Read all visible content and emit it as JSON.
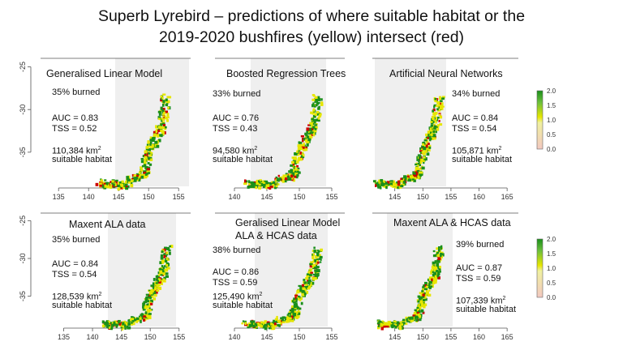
{
  "title": {
    "line1": "Superb Lyrebird – predictions of where suitable habitat or the",
    "line2": "2019-2020 bushfires (yellow) intersect (red)"
  },
  "colors": {
    "bg_panel": "#efefef",
    "burn": "#e6e600",
    "habitat": "#1a8f1a",
    "intersect": "#cc0000"
  },
  "legend": {
    "ticks": [
      "2.0",
      "1.5",
      "1.0",
      "0.5",
      "0.0"
    ]
  },
  "panels": [
    {
      "name": "Generalised Linear Model",
      "name2": "",
      "burned": "35% burned",
      "auc": "AUC = 0.83",
      "tss": "TSS = 0.52",
      "area": "110,384",
      "area_unit": "km",
      "sup": "2",
      "habitat": "suitable habitat",
      "xticks": [
        "135",
        "140",
        "145",
        "150",
        "155"
      ],
      "yticks": [
        "-25",
        "-30",
        "-35"
      ]
    },
    {
      "name": "Boosted Regression Trees",
      "name2": "",
      "burned": "33% burned",
      "auc": "AUC = 0.76",
      "tss": "TSS = 0.43",
      "area": "94,580",
      "area_unit": "km",
      "sup": "2",
      "habitat": "suitable habitat",
      "xticks": [
        "140",
        "145",
        "150",
        "155"
      ],
      "yticks": []
    },
    {
      "name": "Artificial Neural Networks",
      "name2": "",
      "burned": "34% burned",
      "auc": "AUC = 0.84",
      "tss": "TSS = 0.54",
      "area": "105,871",
      "area_unit": "km",
      "sup": "2",
      "habitat": "suitable habitat",
      "xticks": [
        "145",
        "150",
        "155",
        "160",
        "165"
      ],
      "yticks": []
    },
    {
      "name": "Maxent ALA data",
      "name2": "",
      "burned": "35% burned",
      "auc": "AUC = 0.84",
      "tss": "TSS = 0.54",
      "area": "128,539",
      "area_unit": "km",
      "sup": "2",
      "habitat": "suitable habitat",
      "xticks": [
        "135",
        "140",
        "145",
        "150",
        "155"
      ],
      "yticks": [
        "-25",
        "-30",
        "-35"
      ]
    },
    {
      "name": "Geralised Linear Model",
      "name2": "ALA & HCAS data",
      "burned": "38% burned",
      "auc": "AUC = 0.86",
      "tss": "TSS = 0.59",
      "area": "125,490",
      "area_unit": "km",
      "sup": "2",
      "habitat": "suitable habitat",
      "xticks": [
        "140",
        "145",
        "150",
        "155"
      ],
      "yticks": []
    },
    {
      "name": "Maxent ALA & HCAS data",
      "name2": "",
      "burned": "39% burned",
      "auc": "AUC = 0.87",
      "tss": "TSS = 0.59",
      "area": "107,339",
      "area_unit": "km",
      "sup": "2",
      "habitat": "suitable habitat",
      "xticks": [
        "145",
        "150",
        "155",
        "160",
        "165"
      ],
      "yticks": []
    }
  ]
}
